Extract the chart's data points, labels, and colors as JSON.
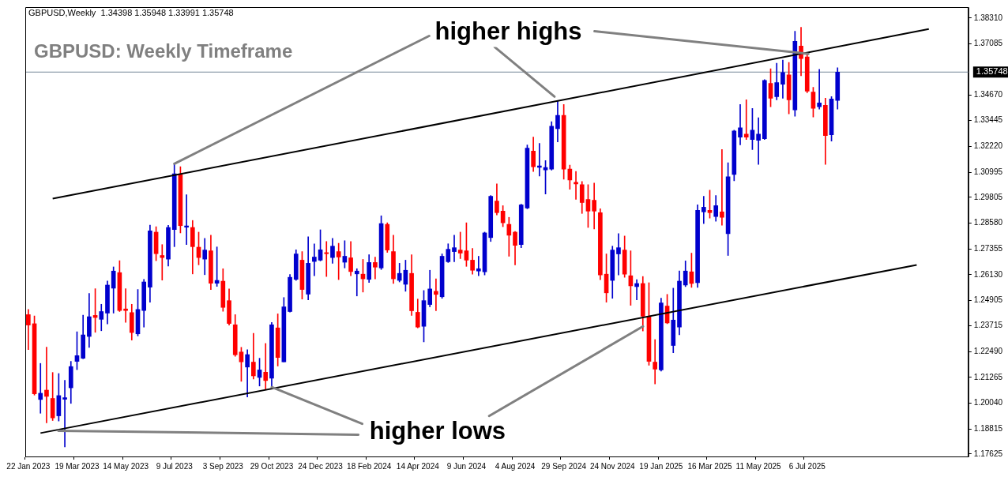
{
  "chart_data": {
    "type": "candlestick",
    "title": "GBPUSD: Weekly Timeframe",
    "subtitle": "GBPUSD,Weekly  1.34398 1.35948 1.33991 1.35748",
    "annotations": [
      {
        "text": "higher highs",
        "x": "9 Jul 2023",
        "y": 1.314
      },
      {
        "text": "higher lows",
        "x": "29 Oct 2023",
        "y": 1.208
      }
    ],
    "categories": [
      "22 Jan 2023",
      null,
      null,
      null,
      null,
      null,
      null,
      null,
      "19 Mar 2023",
      null,
      null,
      null,
      null,
      null,
      null,
      null,
      "14 May 2023",
      null,
      null,
      null,
      null,
      null,
      null,
      null,
      "9 Jul 2023",
      null,
      null,
      null,
      null,
      null,
      null,
      null,
      "3 Sep 2023",
      null,
      null,
      null,
      null,
      null,
      null,
      null,
      "29 Oct 2023",
      null,
      null,
      null,
      null,
      null,
      null,
      null,
      "24 Dec 2023",
      null,
      null,
      null,
      null,
      null,
      null,
      null,
      "18 Feb 2024",
      null,
      null,
      null,
      null,
      null,
      null,
      null,
      "14 Apr 2024",
      null,
      null,
      null,
      null,
      null,
      null,
      null,
      "9 Jun 2024",
      null,
      null,
      null,
      null,
      null,
      null,
      null,
      "4 Aug 2024",
      null,
      null,
      null,
      null,
      null,
      null,
      null,
      "29 Sep 2024",
      null,
      null,
      null,
      null,
      null,
      null,
      null,
      "24 Nov 2024",
      null,
      null,
      null,
      null,
      null,
      null,
      null,
      "19 Jan 2025",
      null,
      null,
      null,
      null,
      null,
      null,
      null,
      "16 Mar 2025",
      null,
      null,
      null,
      null,
      null,
      null,
      null,
      "11 May 2025",
      null,
      null,
      null,
      null,
      null,
      null,
      null,
      "6 Jul 2025",
      null,
      null,
      null,
      null,
      null,
      null,
      null,
      null,
      null,
      null,
      null,
      null,
      null,
      null,
      null,
      null,
      null,
      null,
      null,
      null,
      null,
      null,
      null,
      null,
      null,
      null
    ],
    "ohlc": [
      [
        1.24239,
        1.24485,
        1.22577,
        1.23746
      ],
      [
        1.23808,
        1.24177,
        1.20423,
        1.20484
      ],
      [
        1.20213,
        1.21924,
        1.19561,
        1.20509
      ],
      [
        1.20657,
        1.227,
        1.19105,
        1.20361
      ],
      [
        1.20263,
        1.21494,
        1.19216,
        1.19339
      ],
      [
        1.19438,
        1.21445,
        1.19191,
        1.20398
      ],
      [
        1.20225,
        1.21124,
        1.17961,
        1.20299
      ],
      [
        1.20767,
        1.22022,
        1.20028,
        1.21776
      ],
      [
        1.22022,
        1.23426,
        1.21629,
        1.22293
      ],
      [
        1.2217,
        1.24214,
        1.22146,
        1.23278
      ],
      [
        1.23204,
        1.25248,
        1.22687,
        1.2414
      ],
      [
        1.24202,
        1.25469,
        1.23401,
        1.24103
      ],
      [
        1.24017,
        1.24731,
        1.23475,
        1.24386
      ],
      [
        1.24312,
        1.25839,
        1.23795,
        1.25642
      ],
      [
        1.25494,
        1.26504,
        1.24312,
        1.26306
      ],
      [
        1.26233,
        1.26799,
        1.24386,
        1.24435
      ],
      [
        1.24509,
        1.25469,
        1.23869,
        1.24435
      ],
      [
        1.24337,
        1.24731,
        1.23032,
        1.23389
      ],
      [
        1.23328,
        1.25432,
        1.23229,
        1.24485
      ],
      [
        1.24435,
        1.25913,
        1.23647,
        1.2579
      ],
      [
        1.25543,
        1.28485,
        1.24829,
        1.28215
      ],
      [
        1.28153,
        1.28411,
        1.26799,
        1.27131
      ],
      [
        1.27045,
        1.27562,
        1.25876,
        1.26947
      ],
      [
        1.26873,
        1.28473,
        1.2654,
        1.28375
      ],
      [
        1.28276,
        1.31403,
        1.27464,
        1.30923
      ],
      [
        1.30886,
        1.31255,
        1.28116,
        1.28461
      ],
      [
        1.28387,
        1.29926,
        1.27562,
        1.28449
      ],
      [
        1.28375,
        1.28707,
        1.26171,
        1.27464
      ],
      [
        1.27439,
        1.28153,
        1.26602,
        1.26947
      ],
      [
        1.26873,
        1.27858,
        1.26134,
        1.27304
      ],
      [
        1.27267,
        1.28005,
        1.25432,
        1.25728
      ],
      [
        1.25728,
        1.27451,
        1.2558,
        1.25863
      ],
      [
        1.25826,
        1.26417,
        1.24398,
        1.24583
      ],
      [
        1.24903,
        1.25457,
        1.23746,
        1.2382
      ],
      [
        1.23758,
        1.24239,
        1.22262,
        1.22335
      ],
      [
        1.22466,
        1.22688,
        1.21075,
        1.21998
      ],
      [
        1.21752,
        1.22577,
        1.20336,
        1.22343
      ],
      [
        1.21986,
        1.23352,
        1.21186,
        1.21333
      ],
      [
        1.2126,
        1.2217,
        1.20853,
        1.21616
      ],
      [
        1.21506,
        1.22872,
        1.20706,
        1.21112
      ],
      [
        1.21223,
        1.23869,
        1.20792,
        1.23758
      ],
      [
        1.2361,
        1.24276,
        1.21801,
        1.22207
      ],
      [
        1.21998,
        1.25051,
        1.21998,
        1.24608
      ],
      [
        1.24386,
        1.26147,
        1.24362,
        1.26011
      ],
      [
        1.25913,
        1.27316,
        1.25863,
        1.27119
      ],
      [
        1.26824,
        1.2723,
        1.24977,
        1.25432
      ],
      [
        1.25211,
        1.27931,
        1.2494,
        1.26676
      ],
      [
        1.26762,
        1.27599,
        1.26085,
        1.26971
      ],
      [
        1.26824,
        1.28264,
        1.26787,
        1.27316
      ],
      [
        1.27181,
        1.2771,
        1.26048,
        1.27131
      ],
      [
        1.26947,
        1.27858,
        1.26676,
        1.27488
      ],
      [
        1.2723,
        1.27624,
        1.25901,
        1.26972
      ],
      [
        1.26726,
        1.27747,
        1.26455,
        1.27009
      ],
      [
        1.26935,
        1.2771,
        1.26085,
        1.26282
      ],
      [
        1.26172,
        1.26418,
        1.25125,
        1.26307
      ],
      [
        1.26159,
        1.26861,
        1.2531,
        1.25938
      ],
      [
        1.25913,
        1.27083,
        1.25765,
        1.26713
      ],
      [
        1.26713,
        1.26972,
        1.25938,
        1.26492
      ],
      [
        1.26455,
        1.28929,
        1.26381,
        1.2856
      ],
      [
        1.28523,
        1.28597,
        1.27193,
        1.27304
      ],
      [
        1.2723,
        1.28006,
        1.25716,
        1.25938
      ],
      [
        1.25864,
        1.26676,
        1.2579,
        1.26196
      ],
      [
        1.25679,
        1.26824,
        1.25347,
        1.26344
      ],
      [
        1.26196,
        1.27083,
        1.24202,
        1.24424
      ],
      [
        1.2435,
        1.24978,
        1.23611,
        1.23648
      ],
      [
        1.23685,
        1.25384,
        1.22946,
        1.24904
      ],
      [
        1.24719,
        1.26344,
        1.24608,
        1.25458
      ],
      [
        1.25347,
        1.25938,
        1.24424,
        1.25199
      ],
      [
        1.25088,
        1.2712,
        1.25014,
        1.27009
      ],
      [
        1.2675,
        1.276,
        1.26713,
        1.27341
      ],
      [
        1.2723,
        1.28006,
        1.2675,
        1.27415
      ],
      [
        1.27304,
        1.28154,
        1.26898,
        1.27157
      ],
      [
        1.27267,
        1.28597,
        1.26529,
        1.26824
      ],
      [
        1.26824,
        1.27378,
        1.26159,
        1.26344
      ],
      [
        1.26307,
        1.27009,
        1.26085,
        1.26418
      ],
      [
        1.2627,
        1.28154,
        1.26122,
        1.28117
      ],
      [
        1.27895,
        1.29889,
        1.2771,
        1.29852
      ],
      [
        1.29631,
        1.30443,
        1.28966,
        1.29077
      ],
      [
        1.29151,
        1.29409,
        1.28412,
        1.28597
      ],
      [
        1.28523,
        1.28855,
        1.27009,
        1.28006
      ],
      [
        1.28154,
        1.2819,
        1.26602,
        1.27526
      ],
      [
        1.27563,
        1.2948,
        1.27415,
        1.29446
      ],
      [
        1.29298,
        1.3229,
        1.29262,
        1.32142
      ],
      [
        1.31994,
        1.32659,
        1.31034,
        1.31256
      ],
      [
        1.31231,
        1.32364,
        1.30813,
        1.31293
      ],
      [
        1.31108,
        1.31551,
        1.29963,
        1.31219
      ],
      [
        1.31145,
        1.33398,
        1.311,
        1.33176
      ],
      [
        1.33065,
        1.34358,
        1.32437,
        1.33693
      ],
      [
        1.33693,
        1.3421,
        1.30665,
        1.31145
      ],
      [
        1.31145,
        1.3133,
        1.30185,
        1.30628
      ],
      [
        1.30517,
        1.31034,
        1.29705,
        1.30443
      ],
      [
        1.30406,
        1.30554,
        1.2904,
        1.29557
      ],
      [
        1.29705,
        1.30406,
        1.28375,
        1.29151
      ],
      [
        1.29668,
        1.3048,
        1.28301,
        1.29151
      ],
      [
        1.29077,
        1.29262,
        1.25901,
        1.26122
      ],
      [
        1.26159,
        1.2712,
        1.2483,
        1.25273
      ],
      [
        1.25864,
        1.27489,
        1.25014,
        1.27304
      ],
      [
        1.2712,
        1.2808,
        1.26122,
        1.27415
      ],
      [
        1.27304,
        1.27969,
        1.26011,
        1.26159
      ],
      [
        1.26085,
        1.27267,
        1.24682,
        1.25605
      ],
      [
        1.25568,
        1.25901,
        1.2494,
        1.25716
      ],
      [
        1.25716,
        1.26048,
        1.23463,
        1.24165
      ],
      [
        1.24165,
        1.25753,
        1.21838,
        1.22023
      ],
      [
        1.21986,
        1.23057,
        1.20952,
        1.21654
      ],
      [
        1.21618,
        1.25015,
        1.21556,
        1.24794
      ],
      [
        1.24646,
        1.252,
        1.23809,
        1.23846
      ],
      [
        1.22775,
        1.25495,
        1.2243,
        1.23981
      ],
      [
        1.23649,
        1.26308,
        1.23279,
        1.25828
      ],
      [
        1.25643,
        1.26788,
        1.25569,
        1.26308
      ],
      [
        1.26271,
        1.27157,
        1.25532,
        1.25717
      ],
      [
        1.25754,
        1.29447,
        1.25532,
        1.29188
      ],
      [
        1.29115,
        1.29853,
        1.2856,
        1.29336
      ],
      [
        1.29188,
        1.30148,
        1.28819,
        1.29078
      ],
      [
        1.28893,
        1.2989,
        1.28671,
        1.2941
      ],
      [
        1.29115,
        1.32069,
        1.28486,
        1.28856
      ],
      [
        1.2808,
        1.31441,
        1.27046,
        1.30776
      ],
      [
        1.30887,
        1.32992,
        1.30592,
        1.32955
      ],
      [
        1.3266,
        1.34211,
        1.3229,
        1.33103
      ],
      [
        1.32807,
        1.34432,
        1.32549,
        1.3266
      ],
      [
        1.32549,
        1.34026,
        1.32069,
        1.32992
      ],
      [
        1.32512,
        1.33583,
        1.31367,
        1.32807
      ],
      [
        1.32586,
        1.35392,
        1.32549,
        1.35355
      ],
      [
        1.35208,
        1.35909,
        1.341,
        1.34506
      ],
      [
        1.3458,
        1.36168,
        1.34432,
        1.35245
      ],
      [
        1.35171,
        1.36316,
        1.34506,
        1.35725
      ],
      [
        1.35614,
        1.36205,
        1.33768,
        1.34432
      ],
      [
        1.33952,
        1.37682,
        1.33657,
        1.37202
      ],
      [
        1.3698,
        1.37867,
        1.35577,
        1.3639
      ],
      [
        1.36463,
        1.36574,
        1.34765,
        1.34839
      ],
      [
        1.34802,
        1.35023,
        1.3362,
        1.34026
      ],
      [
        1.341,
        1.35873,
        1.33989,
        1.34285
      ],
      [
        1.34174,
        1.34506,
        1.31367,
        1.32733
      ],
      [
        1.3277,
        1.3458,
        1.32475,
        1.34469
      ],
      [
        1.34398,
        1.35948,
        1.33991,
        1.35748
      ],
      null,
      null,
      null,
      null,
      null,
      null,
      null,
      null,
      null,
      null,
      null,
      null,
      null,
      null,
      null,
      null,
      null,
      null,
      null,
      null,
      null
    ],
    "colors": [
      "#ff0000",
      "#ff0000",
      "#0000cd",
      "#ff0000",
      "#ff0000",
      "#0000cd",
      "#0000cd",
      "#0000cd",
      "#0000cd",
      "#0000cd",
      "#0000cd",
      "#ff0000",
      "#0000cd",
      "#0000cd",
      "#0000cd",
      "#ff0000",
      "#ff0000",
      "#ff0000",
      "#0000cd",
      "#0000cd",
      "#0000cd",
      "#ff0000",
      "#ff0000",
      "#0000cd",
      "#0000cd",
      "#ff0000",
      "#0000cd",
      "#ff0000",
      "#ff0000",
      "#0000cd",
      "#ff0000",
      "#0000cd",
      "#ff0000",
      "#ff0000",
      "#ff0000",
      "#ff0000",
      "#0000cd",
      "#ff0000",
      "#0000cd",
      "#ff0000",
      "#0000cd",
      "#ff0000",
      "#0000cd",
      "#0000cd",
      "#0000cd",
      "#ff0000",
      "#0000cd",
      "#0000cd",
      "#0000cd",
      "#ff0000",
      "#0000cd",
      "#ff0000",
      "#0000cd",
      "#ff0000",
      "#0000cd",
      "#ff0000",
      "#0000cd",
      "#ff0000",
      "#0000cd",
      "#ff0000",
      "#ff0000",
      "#0000cd",
      "#0000cd",
      "#ff0000",
      "#ff0000",
      "#0000cd",
      "#0000cd",
      "#ff0000",
      "#0000cd",
      "#0000cd",
      "#0000cd",
      "#ff0000",
      "#ff0000",
      "#ff0000",
      "#0000cd",
      "#0000cd",
      "#0000cd",
      "#ff0000",
      "#ff0000",
      "#ff0000",
      "#ff0000",
      "#0000cd",
      "#0000cd",
      "#ff0000",
      "#0000cd",
      "#0000cd",
      "#0000cd",
      "#0000cd",
      "#ff0000",
      "#ff0000",
      "#ff0000",
      "#ff0000",
      "#ff0000",
      "#ff0000",
      "#ff0000",
      "#ff0000",
      "#0000cd",
      "#0000cd",
      "#ff0000",
      "#ff0000",
      "#0000cd",
      "#ff0000",
      "#ff0000",
      "#ff0000",
      "#0000cd",
      "#ff0000",
      "#0000cd",
      "#0000cd",
      "#0000cd",
      "#ff0000",
      "#0000cd",
      "#0000cd",
      "#ff0000",
      "#0000cd",
      "#ff0000",
      "#0000cd",
      "#0000cd",
      "#0000cd",
      "#ff0000",
      "#0000cd",
      "#0000cd",
      "#0000cd",
      "#ff0000",
      "#0000cd",
      "#0000cd",
      "#ff0000",
      "#0000cd",
      "#ff0000",
      "#ff0000",
      "#ff0000",
      "#0000cd",
      "#ff0000",
      "#0000cd",
      "#0000cd",
      null,
      null,
      null,
      null,
      null,
      null,
      null,
      null,
      null,
      null,
      null,
      null,
      null,
      null,
      null,
      null,
      null,
      null,
      null,
      null,
      null
    ],
    "series": [
      {
        "type": "line",
        "color": "#000000",
        "values": [
          null,
          null,
          null,
          null,
          1.2974,
          null,
          null,
          null,
          null,
          null,
          null,
          null,
          null,
          null,
          null,
          null,
          null,
          null,
          null,
          null,
          null,
          null,
          null,
          null,
          null,
          null,
          null,
          null,
          null,
          null,
          null,
          null,
          null,
          null,
          null,
          null,
          null,
          null,
          null,
          null,
          null,
          null,
          null,
          null,
          null,
          null,
          null,
          null,
          null,
          null,
          null,
          null,
          null,
          null,
          null,
          null,
          null,
          null,
          null,
          null,
          null,
          null,
          null,
          null,
          null,
          null,
          null,
          null,
          null,
          null,
          null,
          null,
          null,
          null,
          null,
          null,
          null,
          null,
          null,
          null,
          null,
          null,
          null,
          null,
          null,
          null,
          null,
          null,
          null,
          null,
          null,
          null,
          null,
          null,
          null,
          null,
          null,
          null,
          null,
          null,
          null,
          null,
          null,
          null,
          null,
          null,
          null,
          null,
          null,
          null,
          null,
          null,
          null,
          null,
          null,
          null,
          null,
          null,
          null,
          null,
          null,
          null,
          null,
          null,
          null,
          null,
          null,
          null,
          null,
          null,
          null,
          null,
          null,
          null,
          null,
          null,
          null,
          null,
          null,
          null,
          null,
          null,
          null,
          null,
          null,
          null,
          null,
          null,
          1.3779,
          null,
          null,
          null,
          null,
          null,
          null
        ]
      },
      {
        "type": "line",
        "color": "#000000",
        "values": [
          null,
          null,
          1.1862,
          null,
          null,
          null,
          null,
          null,
          null,
          null,
          null,
          null,
          null,
          null,
          null,
          null,
          null,
          null,
          null,
          null,
          null,
          null,
          null,
          null,
          null,
          null,
          null,
          null,
          null,
          null,
          null,
          null,
          null,
          null,
          null,
          null,
          null,
          null,
          null,
          null,
          null,
          null,
          null,
          null,
          null,
          null,
          null,
          null,
          null,
          null,
          null,
          null,
          null,
          null,
          null,
          null,
          null,
          null,
          null,
          null,
          null,
          null,
          null,
          null,
          null,
          null,
          null,
          null,
          null,
          null,
          null,
          null,
          null,
          null,
          null,
          null,
          null,
          null,
          null,
          null,
          null,
          null,
          null,
          null,
          null,
          null,
          null,
          null,
          null,
          null,
          null,
          null,
          null,
          null,
          null,
          null,
          null,
          null,
          null,
          null,
          null,
          null,
          null,
          null,
          null,
          null,
          null,
          null,
          null,
          null,
          null,
          null,
          null,
          null,
          null,
          null,
          null,
          null,
          null,
          null,
          null,
          null,
          null,
          null,
          null,
          null,
          null,
          null,
          null,
          null,
          null,
          null,
          null,
          null,
          null,
          null,
          null,
          null,
          null,
          null,
          null,
          null,
          null,
          null,
          null,
          null,
          1.266,
          null,
          null,
          null,
          null,
          null,
          null,
          null,
          null
        ]
      }
    ],
    "ref_lines": [
      {
        "axis": "y",
        "value": 1.35748,
        "label": "1.35748",
        "color": "#778899"
      }
    ],
    "ylim": [
      1.1751,
      1.3883
    ],
    "yticks": [
      {
        "value": 1.17625,
        "label": "1.17625"
      },
      {
        "value": 1.18815,
        "label": "1.18815"
      },
      {
        "value": 1.2004,
        "label": "1.20040"
      },
      {
        "value": 1.21265,
        "label": "1.21265"
      },
      {
        "value": 1.2249,
        "label": "1.22490"
      },
      {
        "value": 1.23715,
        "label": "1.23715"
      },
      {
        "value": 1.24905,
        "label": "1.24905"
      },
      {
        "value": 1.2613,
        "label": "1.26130"
      },
      {
        "value": 1.27355,
        "label": "1.27355"
      },
      {
        "value": 1.2858,
        "label": "1.28580"
      },
      {
        "value": 1.29805,
        "label": "1.29805"
      },
      {
        "value": 1.30995,
        "label": "1.30995"
      },
      {
        "value": 1.3222,
        "label": "1.32220"
      },
      {
        "value": 1.33445,
        "label": "1.33445"
      },
      {
        "value": 1.3467,
        "label": "1.34670"
      },
      {
        "value": 1.37085,
        "label": "1.37085"
      },
      {
        "value": 1.3831,
        "label": "1.38310"
      }
    ]
  }
}
